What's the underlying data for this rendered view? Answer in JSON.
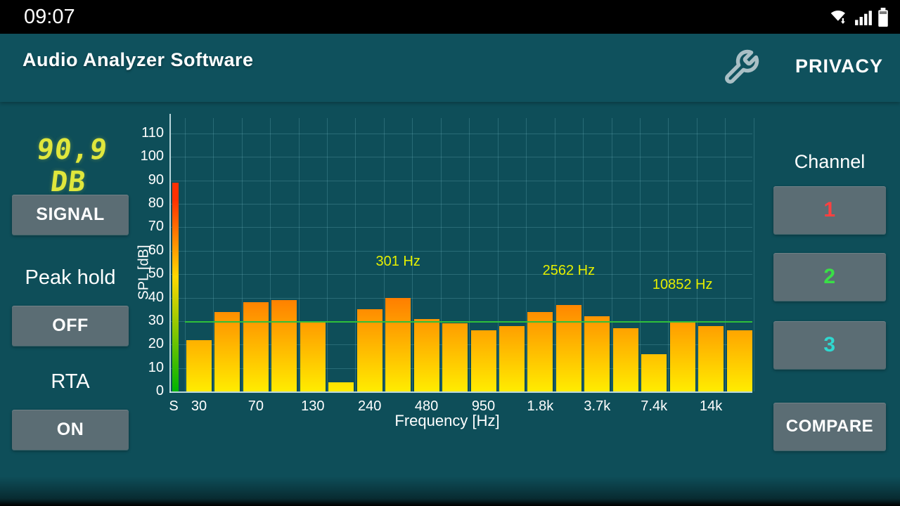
{
  "status_bar": {
    "time": "09:07",
    "icons": [
      "wifi-icon",
      "signal-strength-icon",
      "battery-icon"
    ]
  },
  "header": {
    "title": "Audio Analyzer Software",
    "privacy_label": "PRIVACY",
    "settings_icon": "wrench-icon"
  },
  "left_panel": {
    "spl_readout": "90,9 DB",
    "signal_button_label": "SIGNAL",
    "peak_hold_label": "Peak hold",
    "peak_hold_state": "OFF",
    "rta_label": "RTA",
    "rta_state": "ON"
  },
  "right_panel": {
    "channel_label": "Channel",
    "channel_buttons": [
      {
        "label": "1",
        "color": "#ff4040"
      },
      {
        "label": "2",
        "color": "#39e046"
      },
      {
        "label": "3",
        "color": "#2fd8d0"
      }
    ],
    "compare_label": "COMPARE"
  },
  "chart_data": {
    "type": "bar",
    "title": "",
    "xlabel": "Frequency [Hz]",
    "ylabel": "SPL [dB]",
    "ylim": [
      0,
      110
    ],
    "grid": true,
    "yticks": [
      0,
      10,
      20,
      30,
      40,
      50,
      60,
      70,
      80,
      90,
      100,
      110
    ],
    "x_tick_labels": [
      "S",
      "30",
      "70",
      "130",
      "240",
      "480",
      "950",
      "1.8k",
      "3.7k",
      "7.4k",
      "14k"
    ],
    "signal_bar_db": 89,
    "bar_values_db": [
      22,
      34,
      38,
      39,
      30,
      4,
      35,
      40,
      31,
      29,
      26,
      28,
      34,
      37,
      32,
      27,
      16,
      30,
      28,
      26
    ],
    "peak_annotations": [
      {
        "text": "301 Hz",
        "bar_index": 7,
        "label_db": 51
      },
      {
        "text": "2562 Hz",
        "bar_index": 13,
        "label_db": 47
      },
      {
        "text": "10852 Hz",
        "bar_index": 17,
        "label_db": 41
      }
    ],
    "reference_line_db": 30,
    "bar_color_bottom": "#ffec00",
    "bar_color_top": "#ff8800",
    "signal_bar_colors": [
      "#00b400",
      "#ffd800",
      "#ff3000"
    ],
    "reference_line_color": "#2fbf3a",
    "annotation_color": "#e5ef00"
  }
}
